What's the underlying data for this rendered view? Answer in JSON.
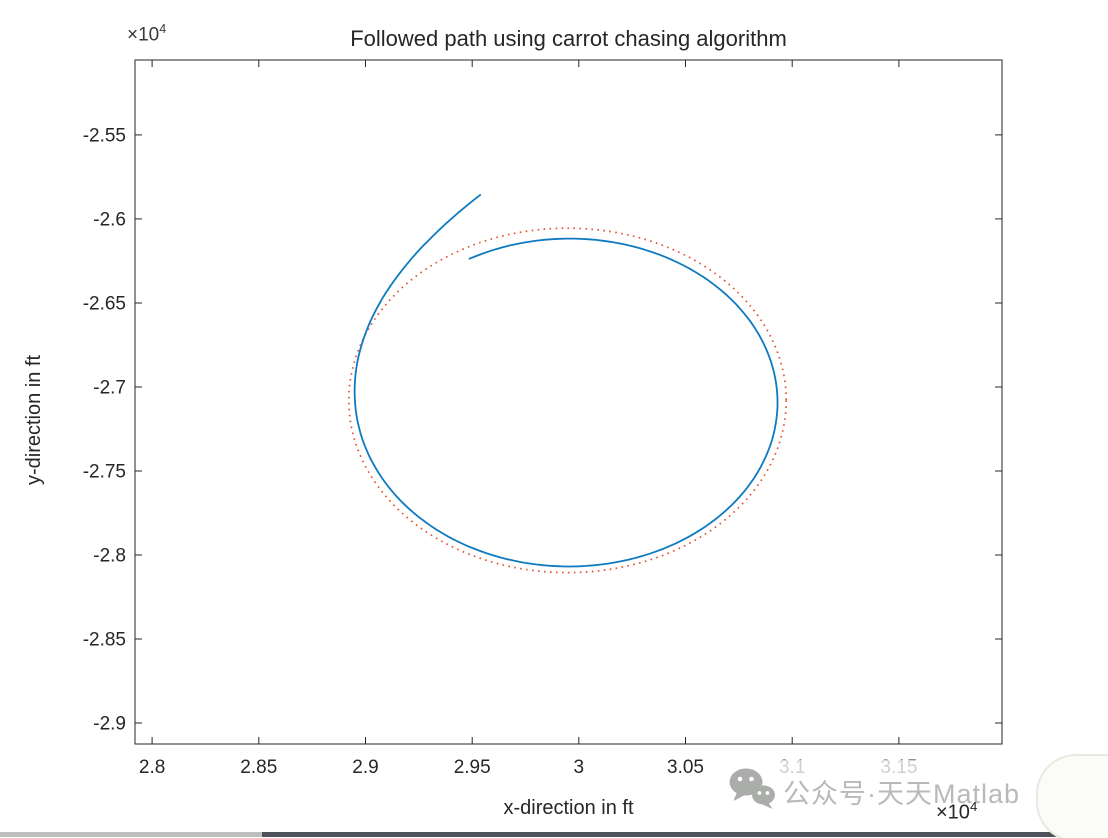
{
  "figure": {
    "title": "Followed path using carrot chasing algorithm",
    "x_axis": {
      "label": "x-direction in ft",
      "multiplier_base": "×10",
      "multiplier_exp": "4"
    },
    "y_axis": {
      "label": "y-direction in ft",
      "multiplier_base": "×10",
      "multiplier_exp": "4"
    }
  },
  "watermark": {
    "icon": "wechat",
    "text": "公众号·天天Matlab"
  },
  "colors": {
    "axis": "#262626",
    "followed_path": "#0f7ac0",
    "desired_path": "#e2512f",
    "watermark_gray": "#b9b9b9"
  },
  "chart_data": {
    "type": "line",
    "title": "Followed path using carrot chasing algorithm",
    "xlabel": "x-direction in ft",
    "ylabel": "y-direction in ft",
    "axis_multiplier": 10000,
    "tick_scale": 10000,
    "grid": false,
    "legend": null,
    "xlim": [
      27920,
      31983
    ],
    "ylim": [
      -29125,
      -25054
    ],
    "x_ticks": [
      28000,
      28500,
      29000,
      29500,
      30000,
      30500,
      31000,
      31500
    ],
    "y_ticks": [
      -29000,
      -28500,
      -28000,
      -27500,
      -27000,
      -26500,
      -26000,
      -25500
    ],
    "series": [
      {
        "name": "desired circular path",
        "shape": "circle",
        "style": "dotted",
        "color": "#e2512f",
        "center": [
          29947,
          -27080
        ],
        "radius": 1025
      },
      {
        "name": "followed path (carrot chasing)",
        "shape": "spiral",
        "style": "solid",
        "color": "#0f7ac0",
        "start": [
          29537,
          -25857
        ],
        "loop_center": [
          29956,
          -27092
        ],
        "loop_radius": 975,
        "start_radius": 1304,
        "start_angle_deg": 108.7,
        "end_angle_deg": 480,
        "radius_decay_deg": 29.8,
        "sample_points": [
          [
            29537,
            -25857
          ],
          [
            29356,
            -26053
          ],
          [
            29040,
            -26560
          ],
          [
            28951,
            -27092
          ],
          [
            29000,
            -27600
          ],
          [
            29400,
            -28030
          ],
          [
            29956,
            -28067
          ],
          [
            30520,
            -27890
          ],
          [
            30931,
            -27092
          ],
          [
            30520,
            -26290
          ],
          [
            29956,
            -26117
          ],
          [
            29469,
            -26248
          ]
        ]
      }
    ]
  }
}
